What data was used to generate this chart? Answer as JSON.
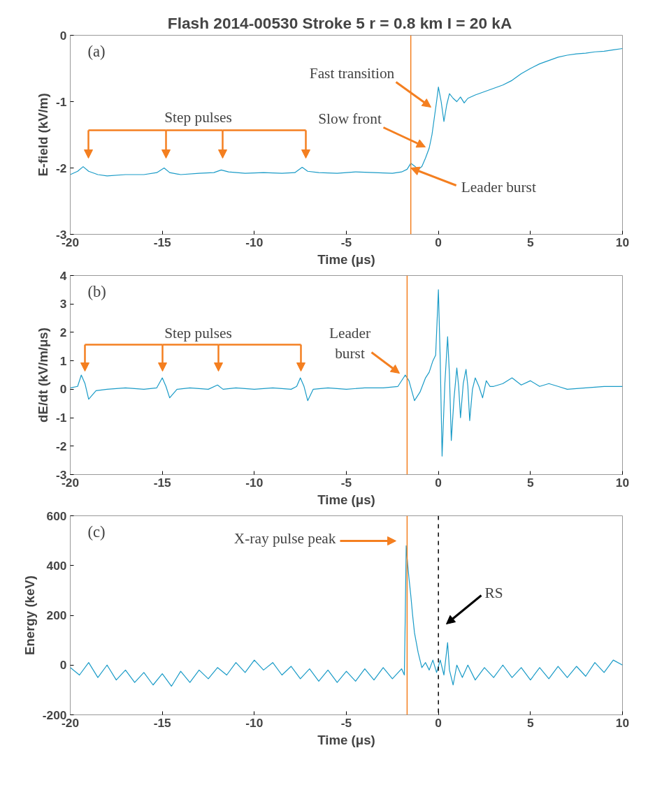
{
  "chart_data": [
    {
      "type": "line",
      "title": "Flash 2014-00530  Stroke 5  r = 0.8 km  I = 20 kA",
      "xlabel": "Time (μs)",
      "ylabel": "E-field (kV/m)",
      "xlim": [
        -20,
        10
      ],
      "ylim": [
        -3,
        0
      ],
      "xticks": [
        -20,
        -15,
        -10,
        -5,
        0,
        5,
        10
      ],
      "yticks": [
        -3,
        -2,
        -1,
        0
      ],
      "x": [
        -20,
        -19.6,
        -19.3,
        -19,
        -18.5,
        -18,
        -17,
        -16,
        -15.3,
        -14.9,
        -14.6,
        -14,
        -13,
        -12.2,
        -11.8,
        -11.4,
        -10.5,
        -9.5,
        -8.5,
        -7.8,
        -7.4,
        -7.1,
        -6.5,
        -5.5,
        -4.5,
        -3.5,
        -2.5,
        -2,
        -1.7,
        -1.5,
        -1.3,
        -1.1,
        -0.9,
        -0.7,
        -0.5,
        -0.35,
        -0.2,
        -0.1,
        0,
        0.15,
        0.3,
        0.45,
        0.6,
        0.8,
        1.0,
        1.2,
        1.4,
        1.6,
        2,
        2.5,
        3,
        3.5,
        4,
        4.5,
        5,
        5.5,
        6,
        6.5,
        7,
        7.5,
        8,
        8.5,
        9,
        9.5,
        10
      ],
      "series": [
        {
          "color": "#1a9bc7",
          "values": [
            -2.1,
            -2.05,
            -1.98,
            -2.05,
            -2.1,
            -2.12,
            -2.1,
            -2.1,
            -2.07,
            -2.0,
            -2.07,
            -2.1,
            -2.08,
            -2.07,
            -2.03,
            -2.06,
            -2.08,
            -2.07,
            -2.08,
            -2.07,
            -1.99,
            -2.05,
            -2.07,
            -2.08,
            -2.06,
            -2.07,
            -2.08,
            -2.06,
            -2.02,
            -1.93,
            -1.97,
            -2.02,
            -1.98,
            -1.85,
            -1.7,
            -1.5,
            -1.2,
            -1.0,
            -0.78,
            -1.0,
            -1.3,
            -1.05,
            -0.88,
            -0.95,
            -1.0,
            -0.93,
            -1.02,
            -0.95,
            -0.9,
            -0.85,
            -0.8,
            -0.75,
            -0.68,
            -0.58,
            -0.5,
            -0.43,
            -0.38,
            -0.33,
            -0.3,
            -0.28,
            -0.27,
            -0.25,
            -0.24,
            -0.22,
            -0.2
          ]
        }
      ],
      "ref_lines": [
        {
          "axis": "x",
          "value": -1.5,
          "color": "#f47f20"
        }
      ],
      "annotations": [
        "(a)",
        "Step pulses",
        "Slow front",
        "Fast transition",
        {
          "text": "Leader burst",
          "x": -1.5,
          "y": -2.0
        }
      ]
    },
    {
      "type": "line",
      "xlabel": "Time (μs)",
      "ylabel": "dE/dt (kV/m/μs)",
      "xlim": [
        -20,
        10
      ],
      "ylim": [
        -3,
        4
      ],
      "xticks": [
        -20,
        -15,
        -10,
        -5,
        0,
        5,
        10
      ],
      "yticks": [
        -3,
        -2,
        -1,
        0,
        1,
        2,
        3,
        4
      ],
      "x": [
        -20,
        -19.6,
        -19.4,
        -19.2,
        -19,
        -18.6,
        -18,
        -17,
        -16,
        -15.3,
        -15,
        -14.8,
        -14.6,
        -14.2,
        -13.5,
        -12.5,
        -12,
        -11.7,
        -11,
        -10,
        -9,
        -8,
        -7.7,
        -7.5,
        -7.3,
        -7.1,
        -6.8,
        -6,
        -5,
        -4,
        -3,
        -2.2,
        -1.8,
        -1.6,
        -1.3,
        -1.0,
        -0.7,
        -0.5,
        -0.3,
        -0.15,
        0,
        0.1,
        0.2,
        0.35,
        0.5,
        0.6,
        0.7,
        0.85,
        1.0,
        1.1,
        1.2,
        1.35,
        1.5,
        1.6,
        1.7,
        1.85,
        2.0,
        2.2,
        2.4,
        2.6,
        2.8,
        3.0,
        3.5,
        4.0,
        4.5,
        5,
        5.5,
        6,
        6.5,
        7,
        8,
        9,
        10
      ],
      "series": [
        {
          "color": "#1a9bc7",
          "values": [
            0.05,
            0.1,
            0.5,
            0.2,
            -0.35,
            -0.05,
            0,
            0.05,
            0,
            0.05,
            0.4,
            0.1,
            -0.3,
            0,
            0.05,
            0,
            0.15,
            0,
            0.05,
            0,
            0.05,
            0,
            0.1,
            0.4,
            0.1,
            -0.4,
            0,
            0.05,
            0,
            0.05,
            0.05,
            0.1,
            0.5,
            0.3,
            -0.4,
            -0.1,
            0.4,
            0.6,
            1.0,
            1.2,
            3.5,
            1.0,
            -2.35,
            0.2,
            1.85,
            0.5,
            -1.8,
            -0.3,
            0.75,
            0.1,
            -1.0,
            0.2,
            0.7,
            0.1,
            -1.1,
            0,
            0.4,
            0.1,
            -0.3,
            0.3,
            0.1,
            0.1,
            0.2,
            0.4,
            0.15,
            0.3,
            0.1,
            0.2,
            0.1,
            0,
            0.05,
            0.1,
            0.1
          ]
        }
      ],
      "ref_lines": [
        {
          "axis": "x",
          "value": -1.7,
          "color": "#f47f20"
        }
      ],
      "annotations": [
        "(b)",
        "Step pulses",
        "Leader burst"
      ]
    },
    {
      "type": "line",
      "xlabel": "Time (μs)",
      "ylabel": "Energy (keV)",
      "xlim": [
        -20,
        10
      ],
      "ylim": [
        -200,
        600
      ],
      "xticks": [
        -20,
        -15,
        -10,
        -5,
        0,
        5,
        10
      ],
      "yticks": [
        -200,
        0,
        200,
        400,
        600
      ],
      "x": [
        -20,
        -19.5,
        -19,
        -18.5,
        -18,
        -17.5,
        -17,
        -16.5,
        -16,
        -15.5,
        -15,
        -14.5,
        -14,
        -13.5,
        -13,
        -12.5,
        -12,
        -11.5,
        -11,
        -10.5,
        -10,
        -9.5,
        -9,
        -8.5,
        -8,
        -7.5,
        -7,
        -6.5,
        -6,
        -5.5,
        -5,
        -4.5,
        -4,
        -3.5,
        -3,
        -2.5,
        -2,
        -1.85,
        -1.8,
        -1.75,
        -1.7,
        -1.6,
        -1.5,
        -1.4,
        -1.3,
        -1.2,
        -1.1,
        -1.0,
        -0.9,
        -0.7,
        -0.5,
        -0.3,
        -0.1,
        0.1,
        0.3,
        0.5,
        0.6,
        0.8,
        1.0,
        1.3,
        1.6,
        2,
        2.5,
        3,
        3.5,
        4,
        4.5,
        5,
        5.5,
        6,
        6.5,
        7,
        7.5,
        8,
        8.5,
        9,
        9.5,
        10
      ],
      "series": [
        {
          "color": "#1a9bc7",
          "values": [
            -10,
            -40,
            10,
            -50,
            0,
            -60,
            -20,
            -70,
            -30,
            -80,
            -35,
            -85,
            -25,
            -70,
            -20,
            -55,
            -10,
            -40,
            10,
            -30,
            20,
            -20,
            10,
            -40,
            -5,
            -55,
            -15,
            -65,
            -20,
            -70,
            -25,
            -65,
            -15,
            -60,
            -10,
            -55,
            -15,
            -40,
            200,
            480,
            430,
            350,
            280,
            200,
            130,
            90,
            50,
            20,
            -10,
            10,
            -20,
            20,
            -30,
            20,
            -40,
            90,
            -20,
            -80,
            0,
            -50,
            0,
            -60,
            -10,
            -50,
            0,
            -50,
            -10,
            -60,
            -10,
            -55,
            -5,
            -50,
            -5,
            -45,
            10,
            -30,
            20,
            0
          ]
        }
      ],
      "ref_lines": [
        {
          "axis": "x",
          "value": -1.7,
          "color": "#f47f20"
        },
        {
          "axis": "x",
          "value": 0,
          "color": "#000000",
          "line_style": "dashed"
        }
      ],
      "annotations": [
        "(c)",
        "X-ray pulse peak",
        "RS"
      ]
    }
  ]
}
